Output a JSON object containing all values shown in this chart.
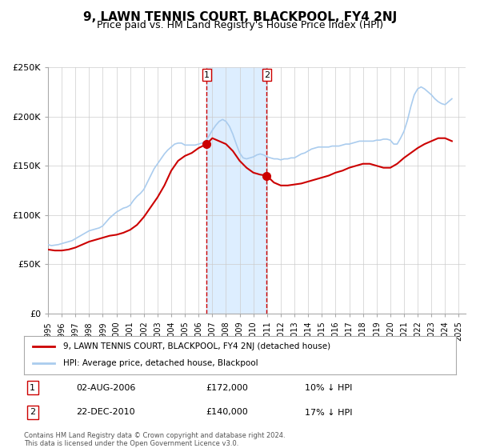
{
  "title": "9, LAWN TENNIS COURT, BLACKPOOL, FY4 2NJ",
  "subtitle": "Price paid vs. HM Land Registry's House Price Index (HPI)",
  "red_label": "9, LAWN TENNIS COURT, BLACKPOOL, FY4 2NJ (detached house)",
  "blue_label": "HPI: Average price, detached house, Blackpool",
  "footnote1": "Contains HM Land Registry data © Crown copyright and database right 2024.",
  "footnote2": "This data is licensed under the Open Government Licence v3.0.",
  "sale1_date": "02-AUG-2006",
  "sale1_price": "£172,000",
  "sale1_hpi": "10% ↓ HPI",
  "sale2_date": "22-DEC-2010",
  "sale2_price": "£140,000",
  "sale2_hpi": "17% ↓ HPI",
  "marker1_x": 2006.583,
  "marker1_y": 172000,
  "marker2_x": 2010.97,
  "marker2_y": 140000,
  "shade_x1": 2006.583,
  "shade_x2": 2010.97,
  "ylim": [
    0,
    250000
  ],
  "xlim_start": 1995.0,
  "xlim_end": 2025.5,
  "ylabel_ticks": [
    0,
    50000,
    100000,
    150000,
    200000,
    250000
  ],
  "ylabel_labels": [
    "£0",
    "£50K",
    "£100K",
    "£150K",
    "£200K",
    "£250K"
  ],
  "grid_color": "#cccccc",
  "red_color": "#cc0000",
  "blue_color": "#aaccee",
  "shade_color": "#ddeeff",
  "background_color": "#ffffff",
  "title_fontsize": 11,
  "subtitle_fontsize": 9,
  "hpi_data_x": [
    1995.0,
    1995.25,
    1995.5,
    1995.75,
    1996.0,
    1996.25,
    1996.5,
    1996.75,
    1997.0,
    1997.25,
    1997.5,
    1997.75,
    1998.0,
    1998.25,
    1998.5,
    1998.75,
    1999.0,
    1999.25,
    1999.5,
    1999.75,
    2000.0,
    2000.25,
    2000.5,
    2000.75,
    2001.0,
    2001.25,
    2001.5,
    2001.75,
    2002.0,
    2002.25,
    2002.5,
    2002.75,
    2003.0,
    2003.25,
    2003.5,
    2003.75,
    2004.0,
    2004.25,
    2004.5,
    2004.75,
    2005.0,
    2005.25,
    2005.5,
    2005.75,
    2006.0,
    2006.25,
    2006.5,
    2006.75,
    2007.0,
    2007.25,
    2007.5,
    2007.75,
    2008.0,
    2008.25,
    2008.5,
    2008.75,
    2009.0,
    2009.25,
    2009.5,
    2009.75,
    2010.0,
    2010.25,
    2010.5,
    2010.75,
    2011.0,
    2011.25,
    2011.5,
    2011.75,
    2012.0,
    2012.25,
    2012.5,
    2012.75,
    2013.0,
    2013.25,
    2013.5,
    2013.75,
    2014.0,
    2014.25,
    2014.5,
    2014.75,
    2015.0,
    2015.25,
    2015.5,
    2015.75,
    2016.0,
    2016.25,
    2016.5,
    2016.75,
    2017.0,
    2017.25,
    2017.5,
    2017.75,
    2018.0,
    2018.25,
    2018.5,
    2018.75,
    2019.0,
    2019.25,
    2019.5,
    2019.75,
    2020.0,
    2020.25,
    2020.5,
    2020.75,
    2021.0,
    2021.25,
    2021.5,
    2021.75,
    2022.0,
    2022.25,
    2022.5,
    2022.75,
    2023.0,
    2023.25,
    2023.5,
    2023.75,
    2024.0,
    2024.25,
    2024.5
  ],
  "hpi_data_y": [
    70000,
    69000,
    69500,
    70000,
    71000,
    72000,
    73000,
    74000,
    76000,
    78000,
    80000,
    82000,
    84000,
    85000,
    86000,
    87000,
    89000,
    93000,
    97000,
    100000,
    103000,
    105000,
    107000,
    108000,
    110000,
    115000,
    119000,
    122000,
    126000,
    133000,
    140000,
    147000,
    152000,
    157000,
    162000,
    166000,
    169000,
    172000,
    173000,
    173000,
    171000,
    171000,
    171000,
    171000,
    172000,
    173000,
    175000,
    180000,
    186000,
    191000,
    195000,
    197000,
    195000,
    190000,
    182000,
    172000,
    163000,
    158000,
    157000,
    158000,
    159000,
    161000,
    162000,
    161000,
    159000,
    158000,
    157000,
    157000,
    156000,
    157000,
    157000,
    158000,
    158000,
    160000,
    162000,
    163000,
    165000,
    167000,
    168000,
    169000,
    169000,
    169000,
    169000,
    170000,
    170000,
    170000,
    171000,
    172000,
    172000,
    173000,
    174000,
    175000,
    175000,
    175000,
    175000,
    175000,
    176000,
    176000,
    177000,
    177000,
    176000,
    172000,
    172000,
    178000,
    185000,
    196000,
    210000,
    222000,
    228000,
    230000,
    228000,
    225000,
    222000,
    218000,
    215000,
    213000,
    212000,
    215000,
    218000
  ],
  "red_data_x": [
    1995.0,
    1995.5,
    1996.0,
    1996.5,
    1997.0,
    1997.5,
    1998.0,
    1998.5,
    1999.0,
    1999.5,
    2000.0,
    2000.5,
    2001.0,
    2001.5,
    2002.0,
    2002.5,
    2003.0,
    2003.5,
    2004.0,
    2004.5,
    2005.0,
    2005.5,
    2006.0,
    2006.583,
    2007.0,
    2007.5,
    2008.0,
    2008.5,
    2009.0,
    2009.5,
    2010.0,
    2010.5,
    2010.97,
    2011.5,
    2012.0,
    2012.5,
    2013.0,
    2013.5,
    2014.0,
    2014.5,
    2015.0,
    2015.5,
    2016.0,
    2016.5,
    2017.0,
    2017.5,
    2018.0,
    2018.5,
    2019.0,
    2019.5,
    2020.0,
    2020.5,
    2021.0,
    2021.5,
    2022.0,
    2022.5,
    2023.0,
    2023.5,
    2024.0,
    2024.5
  ],
  "red_data_y": [
    65000,
    64000,
    64000,
    65000,
    67000,
    70000,
    73000,
    75000,
    77000,
    79000,
    80000,
    82000,
    85000,
    90000,
    98000,
    108000,
    118000,
    130000,
    145000,
    155000,
    160000,
    163000,
    168000,
    172000,
    178000,
    175000,
    172000,
    165000,
    155000,
    148000,
    143000,
    141000,
    140000,
    133000,
    130000,
    130000,
    131000,
    132000,
    134000,
    136000,
    138000,
    140000,
    143000,
    145000,
    148000,
    150000,
    152000,
    152000,
    150000,
    148000,
    148000,
    152000,
    158000,
    163000,
    168000,
    172000,
    175000,
    178000,
    178000,
    175000
  ]
}
